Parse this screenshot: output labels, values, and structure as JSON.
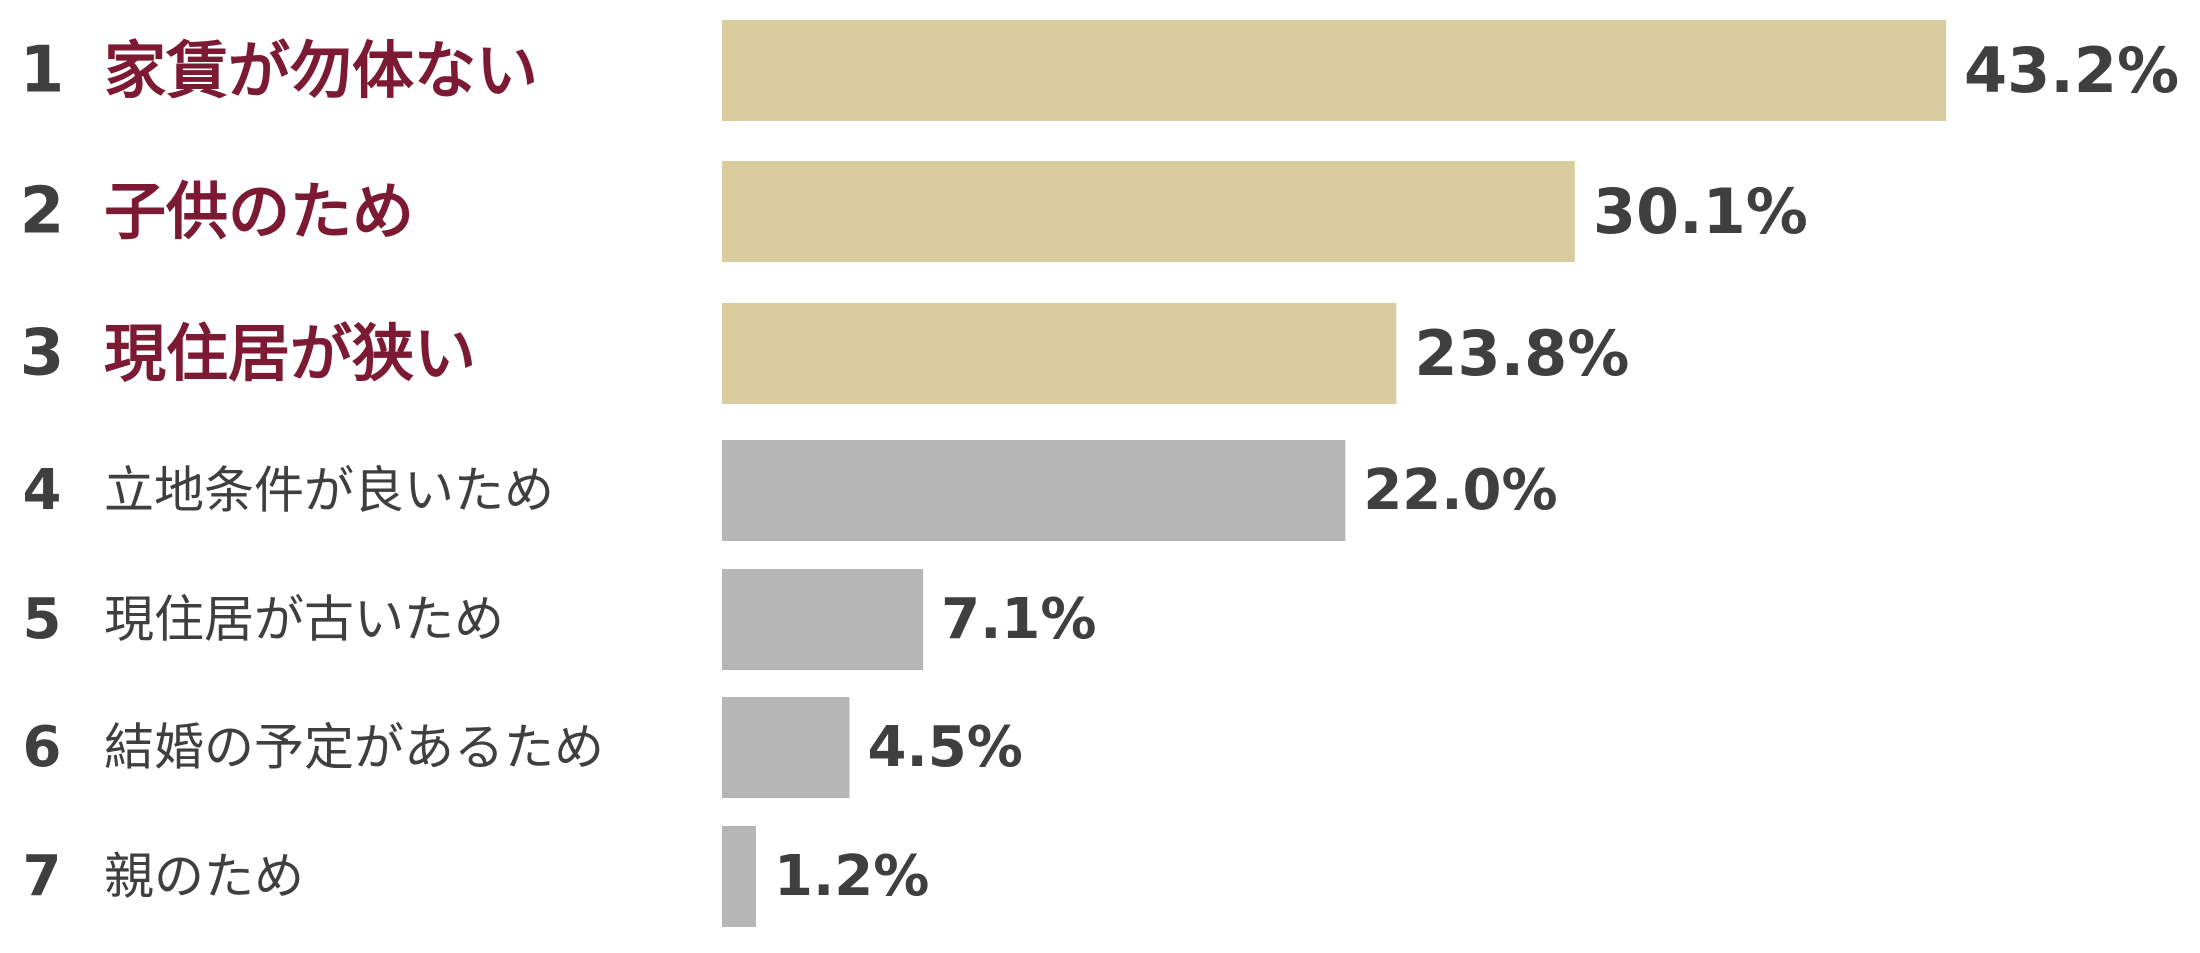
{
  "chart_data": {
    "type": "bar",
    "orientation": "horizontal",
    "categories": [
      "家賃が勿体ない",
      "子供のため",
      "現住居が狭い",
      "立地条件が良いため",
      "現住居が古いため",
      "結婚の予定があるため",
      "親のため"
    ],
    "ranks": [
      "1",
      "2",
      "3",
      "4",
      "5",
      "6",
      "7"
    ],
    "values": [
      43.2,
      30.1,
      23.8,
      22.0,
      7.1,
      4.5,
      1.2
    ],
    "value_labels": [
      "43.2%",
      "30.1%",
      "23.8%",
      "22.0%",
      "7.1%",
      "4.5%",
      "1.2%"
    ],
    "unit": "%",
    "highlight_top_n": 3,
    "colors": {
      "highlight_bar": "#d9cd9f",
      "other_bar": "#b5b6b5",
      "highlight_label": "#7d1a33",
      "text": "#3f3f3f"
    },
    "title": "",
    "xlabel": "",
    "ylabel": "",
    "grid": false,
    "legend": "none"
  }
}
